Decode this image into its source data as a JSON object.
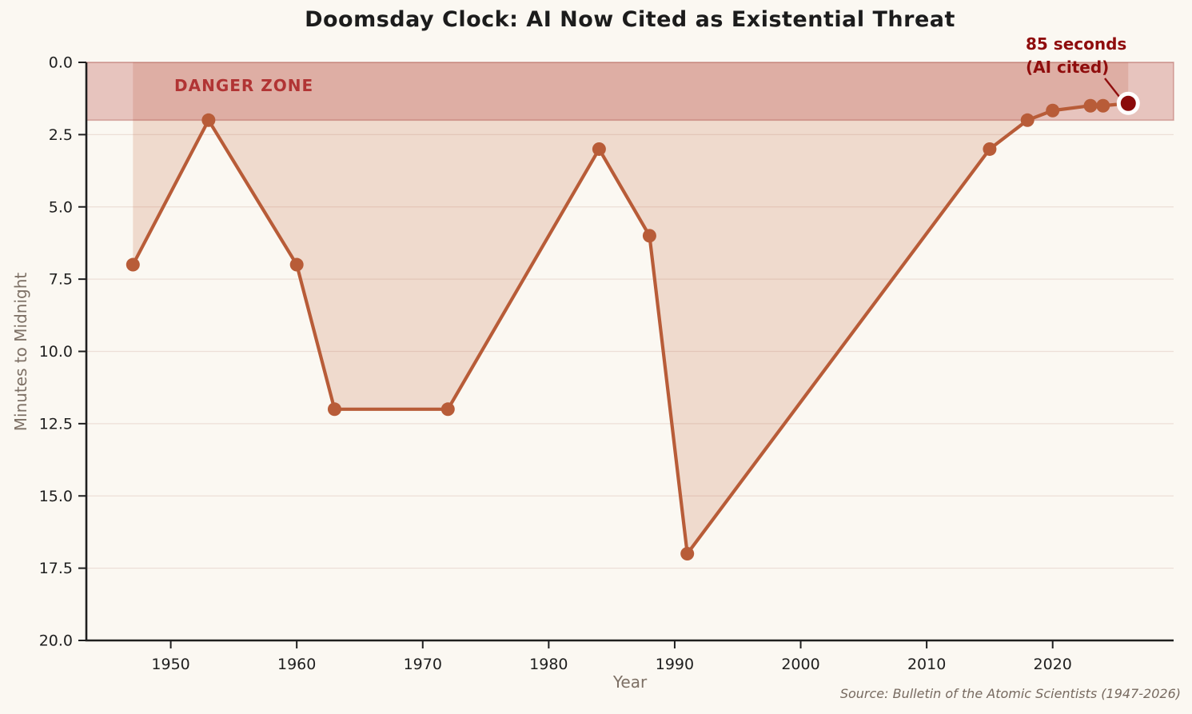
{
  "figure": {
    "title": "Doomsday Clock: AI Now Cited as Existential Threat",
    "xlabel": "Year",
    "ylabel": "Minutes to Midnight",
    "source": "Source: Bulletin of the Atomic Scientists (1947-2026)",
    "danger_zone_label": "DANGER ZONE",
    "annotation_line1": "85 seconds",
    "annotation_line2": "(AI cited)"
  },
  "chart_data": {
    "type": "line",
    "title": "Doomsday Clock: AI Now Cited as Existential Threat",
    "xlabel": "Year",
    "ylabel": "Minutes to Midnight",
    "x": [
      1947,
      1953,
      1960,
      1963,
      1972,
      1984,
      1988,
      1991,
      2015,
      2018,
      2020,
      2023,
      2024,
      2026
    ],
    "y": [
      7,
      2,
      7,
      12,
      12,
      3,
      6,
      17,
      3,
      2,
      1.667,
      1.5,
      1.5,
      1.417
    ],
    "series_name": "Minutes to Midnight",
    "xlim": [
      1943.3,
      2029.6
    ],
    "ylim": [
      20,
      0
    ],
    "y_axis_inverted": true,
    "xticks": [
      1950,
      1960,
      1970,
      1980,
      1990,
      2000,
      2010,
      2020
    ],
    "yticks": [
      0,
      2.5,
      5,
      7.5,
      10,
      12.5,
      15,
      17.5,
      20
    ],
    "ytick_labels": [
      "0.0",
      "2.5",
      "5.0",
      "7.5",
      "10.0",
      "12.5",
      "15.0",
      "17.5",
      "20.0"
    ],
    "grid": "horizontal",
    "legend": "none",
    "area_fill_to": 0,
    "danger_zone": {
      "from": 0,
      "to": 2,
      "label": "DANGER ZONE"
    },
    "highlight": {
      "x": 2026,
      "y": 1.417,
      "label": "85 seconds (AI cited)"
    },
    "annotation_text": "85 seconds\n(AI cited)",
    "source": "Source: Bulletin of the Atomic Scientists (1947-2026)",
    "colors": {
      "background": "#fbf8f2",
      "line": "#b85c38",
      "marker": "#b85c38",
      "highlight_fill": "#8a0a0a",
      "highlight_edge": "#ffffff",
      "annotation_text": "#8f0d0d",
      "danger_label": "#b13434",
      "band_fill": "rgba(178,62,56,0.28)",
      "band_edge": "rgba(160,55,48,0.35)",
      "area_fill": "rgba(193,101,62,0.20)",
      "grid": "rgba(216,186,176,0.40)",
      "spine": "#1f1f1f",
      "tick_label": "#1f1f1f",
      "axis_label": "#7d7065",
      "source_text": "#776a60"
    }
  }
}
